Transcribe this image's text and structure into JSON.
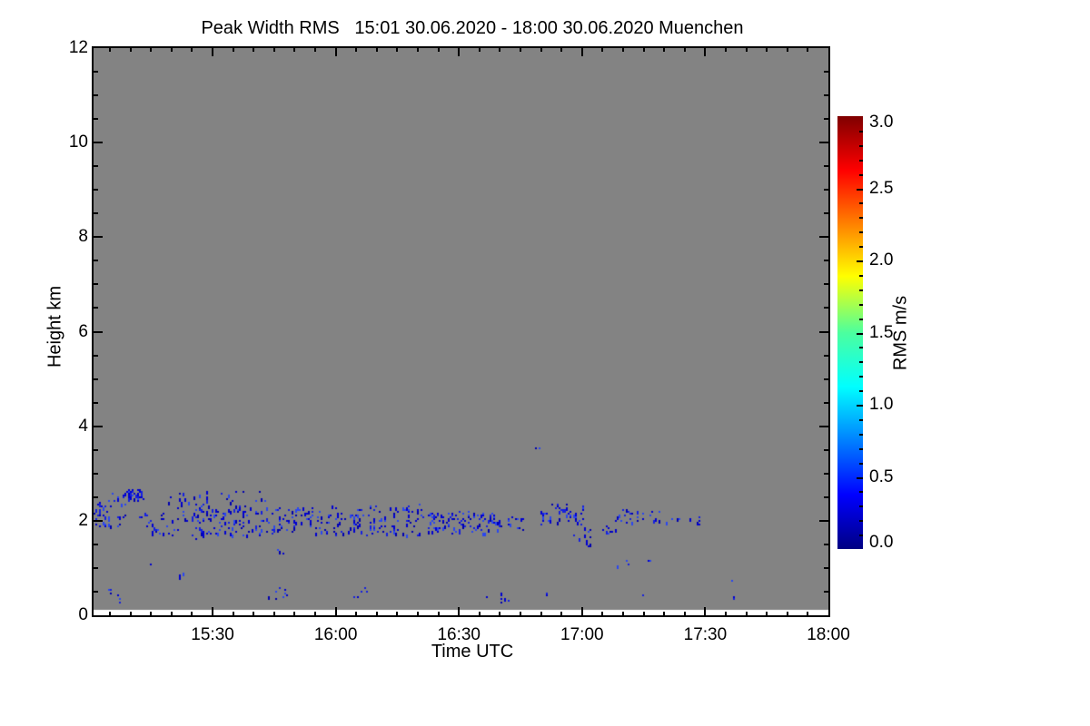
{
  "title": "Peak Width RMS   15:01 30.06.2020 - 18:00 30.06.2020 Muenchen",
  "axes": {
    "x": {
      "title": "Time UTC",
      "tick_labels": [
        {
          "label": "15:30",
          "t": 30
        },
        {
          "label": "16:00",
          "t": 60
        },
        {
          "label": "16:30",
          "t": 90
        },
        {
          "label": "17:00",
          "t": 120
        },
        {
          "label": "17:30",
          "t": 150
        },
        {
          "label": "18:00",
          "t": 180
        }
      ],
      "minor_step_min": 5
    },
    "y": {
      "title": "Height km",
      "tick_labels": [
        {
          "label": "0",
          "km": 0
        },
        {
          "label": "2",
          "km": 2
        },
        {
          "label": "4",
          "km": 4
        },
        {
          "label": "6",
          "km": 6
        },
        {
          "label": "8",
          "km": 8
        },
        {
          "label": "10",
          "km": 10
        },
        {
          "label": "12",
          "km": 12
        }
      ],
      "minor_step_km": 0.5
    }
  },
  "colorbar": {
    "title": "RMS m/s",
    "tick_labels": [
      {
        "label": "0.0",
        "v": 0.0
      },
      {
        "label": "0.5",
        "v": 0.5
      },
      {
        "label": "1.0",
        "v": 1.0
      },
      {
        "label": "1.5",
        "v": 1.5
      },
      {
        "label": "2.0",
        "v": 2.0
      },
      {
        "label": "2.5",
        "v": 2.5
      },
      {
        "label": "3.0",
        "v": 3.0
      }
    ],
    "minor_step": 0.1,
    "gradient_bottom_to_top": [
      [
        "0%",
        "#000083"
      ],
      [
        "12.5%",
        "#0000ff"
      ],
      [
        "37.5%",
        "#00ffff"
      ],
      [
        "50%",
        "#4cff9e"
      ],
      [
        "63%",
        "#ffff00"
      ],
      [
        "87.5%",
        "#ff0000"
      ],
      [
        "100%",
        "#7f0000"
      ]
    ]
  },
  "chart_data": {
    "type": "scatter",
    "title": "Peak Width RMS   15:01 30.06.2020 - 18:00 30.06.2020 Muenchen",
    "xlabel": "Time UTC",
    "ylabel": "Height km",
    "x_range_utc": [
      "15:01",
      "18:00"
    ],
    "x_range_minutes_after_1500": [
      1,
      180
    ],
    "y_range_km": [
      0,
      12
    ],
    "colorbar_label": "RMS m/s",
    "colorbar_range_ms": [
      0,
      3
    ],
    "no_data_color": "#838383",
    "no_data_below_km": 0.12,
    "point_rms_band_ms": [
      0.1,
      0.45
    ],
    "point_palette": [
      "#0000b0",
      "#0000d2",
      "#0000d2",
      "#1520e0",
      "#2a46f0"
    ],
    "seed": 20200630,
    "speckle_bands": [
      {
        "t0": 1,
        "t1": 5,
        "h0": 1.85,
        "h1": 2.45,
        "n": 30
      },
      {
        "t0": 5,
        "t1": 9,
        "h0": 2.35,
        "h1": 2.6,
        "n": 10
      },
      {
        "t0": 5,
        "t1": 9,
        "h0": 1.9,
        "h1": 2.15,
        "n": 8
      },
      {
        "t0": 9,
        "t1": 13,
        "h0": 2.45,
        "h1": 2.68,
        "n": 38
      },
      {
        "t0": 12,
        "t1": 18,
        "h0": 1.7,
        "h1": 2.2,
        "n": 26
      },
      {
        "t0": 18,
        "t1": 26,
        "h0": 1.6,
        "h1": 2.6,
        "n": 32
      },
      {
        "t0": 26,
        "t1": 44,
        "h0": 1.7,
        "h1": 2.35,
        "n": 105
      },
      {
        "t0": 26,
        "t1": 44,
        "h0": 2.4,
        "h1": 2.65,
        "n": 16
      },
      {
        "t0": 44,
        "t1": 58,
        "h0": 1.75,
        "h1": 2.3,
        "n": 65
      },
      {
        "t0": 58,
        "t1": 82,
        "h0": 1.7,
        "h1": 2.35,
        "n": 125
      },
      {
        "t0": 82,
        "t1": 100,
        "h0": 1.75,
        "h1": 2.2,
        "n": 105
      },
      {
        "t0": 100,
        "t1": 106,
        "h0": 1.8,
        "h1": 2.1,
        "n": 14
      },
      {
        "t0": 110,
        "t1": 121,
        "h0": 1.95,
        "h1": 2.35,
        "n": 50
      },
      {
        "t0": 117,
        "t1": 122,
        "h0": 1.6,
        "h1": 1.85,
        "n": 10
      },
      {
        "t0": 124,
        "t1": 128,
        "h0": 1.75,
        "h1": 1.9,
        "n": 8
      },
      {
        "t0": 128,
        "t1": 140,
        "h0": 1.95,
        "h1": 2.3,
        "n": 26
      },
      {
        "t0": 140,
        "t1": 149,
        "h0": 1.9,
        "h1": 2.15,
        "n": 10
      },
      {
        "t0": 4,
        "t1": 8,
        "h0": 0.3,
        "h1": 0.6,
        "n": 6
      },
      {
        "t0": 20,
        "t1": 24,
        "h0": 0.4,
        "h1": 0.9,
        "n": 4
      },
      {
        "t0": 43,
        "t1": 48,
        "h0": 0.3,
        "h1": 0.65,
        "n": 8
      },
      {
        "t0": 64,
        "t1": 68,
        "h0": 0.35,
        "h1": 0.6,
        "n": 5
      },
      {
        "t0": 95,
        "t1": 103,
        "h0": 0.3,
        "h1": 0.5,
        "n": 6
      },
      {
        "t0": 110,
        "t1": 112,
        "h0": 0.4,
        "h1": 0.5,
        "n": 2
      },
      {
        "t0": 14,
        "t1": 15,
        "h0": 1.05,
        "h1": 1.2,
        "n": 2
      },
      {
        "t0": 45,
        "t1": 47,
        "h0": 1.25,
        "h1": 1.45,
        "n": 3
      },
      {
        "t0": 120,
        "t1": 122,
        "h0": 1.4,
        "h1": 1.55,
        "n": 3
      },
      {
        "t0": 128,
        "t1": 131,
        "h0": 1.0,
        "h1": 1.2,
        "n": 3
      },
      {
        "t0": 135,
        "t1": 137,
        "h0": 1.1,
        "h1": 1.2,
        "n": 2
      }
    ],
    "isolated_points": [
      [
        108.7,
        3.57
      ],
      [
        109.3,
        3.55
      ],
      [
        134.5,
        0.45
      ],
      [
        156.3,
        0.75
      ],
      [
        156.8,
        0.42
      ],
      [
        156.9,
        0.35
      ]
    ]
  }
}
